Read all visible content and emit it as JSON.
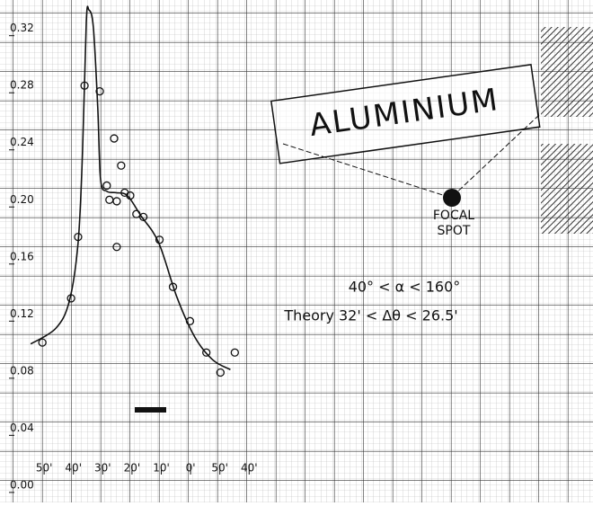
{
  "chart_data": {
    "type": "scatter",
    "annotations": [
      "ALUMINIUM",
      "FOCAL SPOT",
      "40° < α < 160°",
      "Theory 32' < Δθ < 26.5'"
    ],
    "xlim": [
      122,
      -59
    ],
    "ylim": [
      -0.007,
      0.345
    ],
    "xticks": [
      {
        "value": 110,
        "label": "50'"
      },
      {
        "value": 100,
        "label": "40'"
      },
      {
        "value": 90,
        "label": "30'"
      },
      {
        "value": 80,
        "label": "20'"
      },
      {
        "value": 70,
        "label": "10'"
      },
      {
        "value": 60,
        "label": "0'"
      },
      {
        "value": 50,
        "label": "50'"
      },
      {
        "value": 40,
        "label": "40'"
      }
    ],
    "yticks": [
      {
        "value": 0,
        "label": "0.00"
      },
      {
        "value": 0.04,
        "label": "0.04"
      },
      {
        "value": 0.08,
        "label": "0.08"
      },
      {
        "value": 0.12,
        "label": "0.12"
      },
      {
        "value": 0.16,
        "label": "0.16"
      },
      {
        "value": 0.2,
        "label": "0.20"
      },
      {
        "value": 0.24,
        "label": "0.24"
      },
      {
        "value": 0.28,
        "label": "0.28"
      },
      {
        "value": 0.32,
        "label": "0.32"
      }
    ],
    "series": [
      {
        "kind": "points",
        "color": "#111",
        "x": [
          110.6,
          100.8,
          98.4,
          96.2,
          91.0,
          88.6,
          87.7,
          86.1,
          85.2,
          85.2,
          83.7,
          82.5,
          80.6,
          78.5,
          76.1,
          70.6,
          66.0,
          60.2,
          54.6,
          49.8,
          44.9
        ],
        "values": [
          0.105,
          0.136,
          0.179,
          0.285,
          0.281,
          0.215,
          0.205,
          0.248,
          0.204,
          0.172,
          0.229,
          0.21,
          0.208,
          0.195,
          0.193,
          0.177,
          0.144,
          0.12,
          0.098,
          0.084,
          0.098
        ]
      },
      {
        "kind": "curve",
        "color": "#111",
        "x": [
          114.6,
          106.0,
          101.4,
          98.4,
          96.9,
          95.6,
          94.7,
          93.2,
          91.7,
          90.7,
          88.6,
          85.5,
          81.6,
          77.0,
          70.9,
          64.7,
          58.6,
          52.5,
          46.4
        ],
        "values": [
          0.104,
          0.115,
          0.134,
          0.175,
          0.238,
          0.33,
          0.338,
          0.326,
          0.27,
          0.219,
          0.211,
          0.21,
          0.208,
          0.194,
          0.175,
          0.137,
          0.109,
          0.093,
          0.086
        ]
      }
    ]
  }
}
